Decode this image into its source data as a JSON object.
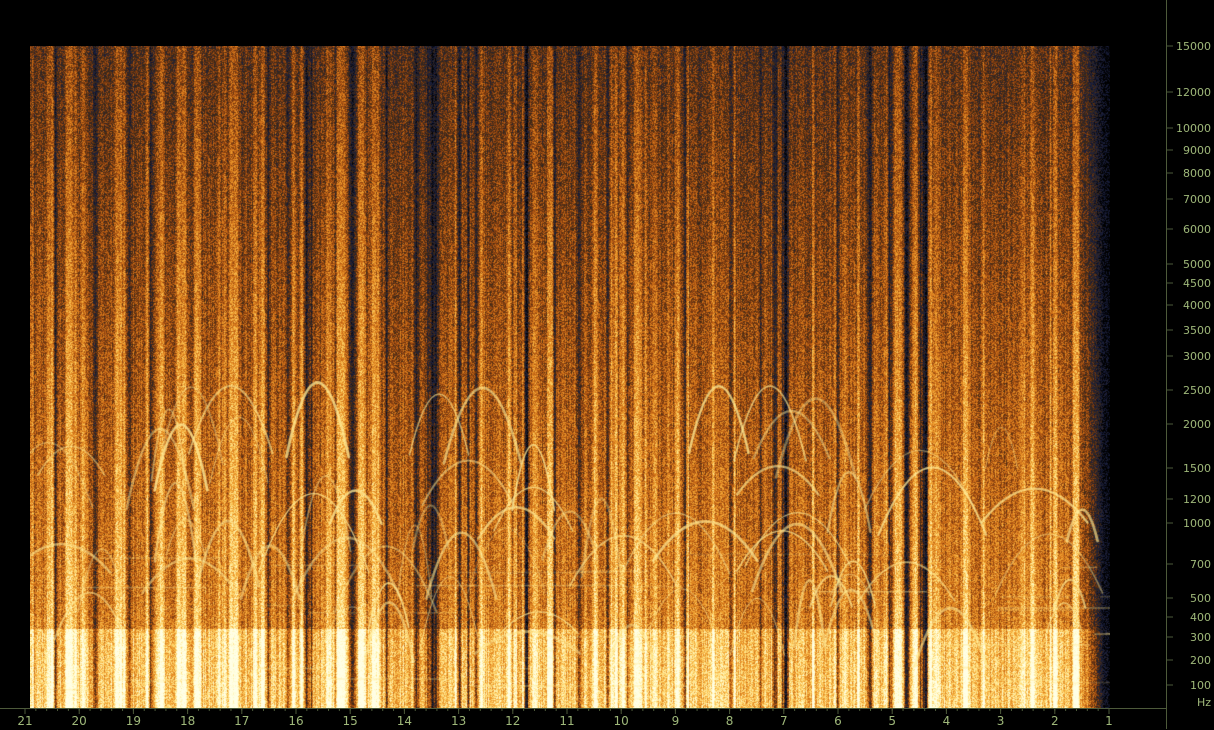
{
  "chart_data": {
    "type": "heatmap",
    "title": "",
    "xlabel": "",
    "ylabel": "",
    "x_ticks": [
      "21",
      "20",
      "19",
      "18",
      "17",
      "16",
      "15",
      "14",
      "13",
      "12",
      "11",
      "10",
      "9",
      "8",
      "7",
      "6",
      "5",
      "4",
      "3",
      "2",
      "1"
    ],
    "x_direction": "descending-left-to-right",
    "y_unit": "Hz",
    "y_ticks": [
      15000,
      12000,
      10000,
      9000,
      8000,
      7000,
      6000,
      5000,
      4500,
      4000,
      3500,
      3000,
      2500,
      2000,
      1500,
      1200,
      1000,
      700,
      500,
      400,
      300,
      200,
      100
    ],
    "y_scale": "log-like",
    "ylim": [
      0,
      15000
    ],
    "colormap": [
      "#000000",
      "#1a2040",
      "#3a2a18",
      "#8a4010",
      "#d07018",
      "#f0a030",
      "#ffd870",
      "#fff8c0"
    ]
  },
  "colors": {
    "background": "#000000",
    "axis_text": "#9fb87a",
    "axis_line": "#4d5a3a"
  }
}
